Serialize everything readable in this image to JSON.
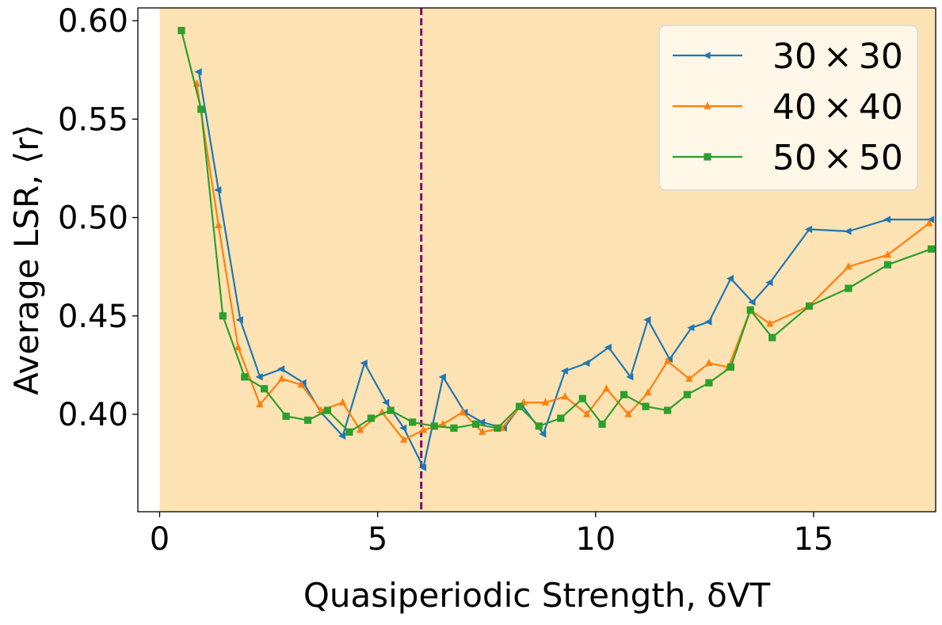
{
  "chart_data": {
    "type": "line",
    "xlabel": "Quasiperiodic Strength, δVT",
    "ylabel": "Average LSR, ⟨r⟩",
    "xlim": [
      -0.5,
      17.8
    ],
    "ylim": [
      0.3505,
      0.6065
    ],
    "xticks": [
      0,
      5,
      10,
      15
    ],
    "yticks": [
      0.4,
      0.45,
      0.5,
      0.55,
      0.6
    ],
    "xtick_labels": [
      "0",
      "5",
      "10",
      "15"
    ],
    "ytick_labels": [
      "0.40",
      "0.45",
      "0.50",
      "0.55",
      "0.60"
    ],
    "background_color": "#fde3b3",
    "vline": {
      "x": 6.0,
      "color": "#7b0a7b",
      "style": "dashed"
    },
    "legend_position": "top-right",
    "series": [
      {
        "name": "30 × 30",
        "legend_label": {
          "num": "30",
          "times": "×",
          "num2": "30"
        },
        "color": "#1f77b4",
        "marker": "triangle-left",
        "x": [
          0.9,
          1.35,
          1.85,
          2.3,
          2.8,
          3.3,
          3.7,
          4.2,
          4.7,
          5.2,
          5.6,
          6.05,
          6.5,
          7.0,
          7.4,
          7.9,
          8.3,
          8.8,
          9.3,
          9.8,
          10.3,
          10.8,
          11.2,
          11.7,
          12.2,
          12.6,
          13.1,
          13.6,
          14.0,
          14.9,
          15.8,
          16.7,
          17.7
        ],
        "y": [
          0.574,
          0.514,
          0.448,
          0.419,
          0.423,
          0.416,
          0.401,
          0.389,
          0.426,
          0.406,
          0.393,
          0.373,
          0.419,
          0.401,
          0.396,
          0.393,
          0.405,
          0.39,
          0.422,
          0.426,
          0.434,
          0.419,
          0.448,
          0.428,
          0.444,
          0.447,
          0.469,
          0.457,
          0.467,
          0.494,
          0.493,
          0.499,
          0.499
        ]
      },
      {
        "name": "40 × 40",
        "legend_label": {
          "num": "40",
          "times": "×",
          "num2": "40"
        },
        "color": "#ff7f0e",
        "marker": "triangle-up",
        "x": [
          0.85,
          1.35,
          1.8,
          2.3,
          2.8,
          3.25,
          3.7,
          4.2,
          4.6,
          5.1,
          5.6,
          6.05,
          6.5,
          6.95,
          7.4,
          7.85,
          8.35,
          8.85,
          9.3,
          9.8,
          10.25,
          10.75,
          11.2,
          11.65,
          12.15,
          12.6,
          13.05,
          13.55,
          14.0,
          14.9,
          15.8,
          16.7,
          17.65
        ],
        "y": [
          0.568,
          0.496,
          0.434,
          0.405,
          0.418,
          0.415,
          0.402,
          0.406,
          0.392,
          0.401,
          0.387,
          0.392,
          0.395,
          0.401,
          0.391,
          0.393,
          0.406,
          0.406,
          0.409,
          0.4,
          0.413,
          0.4,
          0.411,
          0.427,
          0.418,
          0.426,
          0.424,
          0.453,
          0.446,
          0.455,
          0.475,
          0.481,
          0.497
        ]
      },
      {
        "name": "50 × 50",
        "legend_label": {
          "num": "50",
          "times": "×",
          "num2": "50"
        },
        "color": "#2ca02c",
        "marker": "square",
        "x": [
          0.5,
          0.95,
          1.45,
          1.95,
          2.4,
          2.9,
          3.4,
          3.85,
          4.35,
          4.85,
          5.3,
          5.8,
          6.3,
          6.75,
          7.25,
          7.75,
          8.25,
          8.7,
          9.2,
          9.7,
          10.15,
          10.65,
          11.15,
          11.65,
          12.1,
          12.6,
          13.1,
          13.55,
          14.05,
          14.9,
          15.8,
          16.7,
          17.7
        ],
        "y": [
          0.595,
          0.555,
          0.45,
          0.419,
          0.413,
          0.399,
          0.397,
          0.402,
          0.391,
          0.398,
          0.402,
          0.396,
          0.394,
          0.393,
          0.395,
          0.393,
          0.404,
          0.394,
          0.398,
          0.408,
          0.395,
          0.41,
          0.404,
          0.402,
          0.41,
          0.416,
          0.424,
          0.453,
          0.439,
          0.455,
          0.464,
          0.476,
          0.484
        ]
      }
    ]
  }
}
